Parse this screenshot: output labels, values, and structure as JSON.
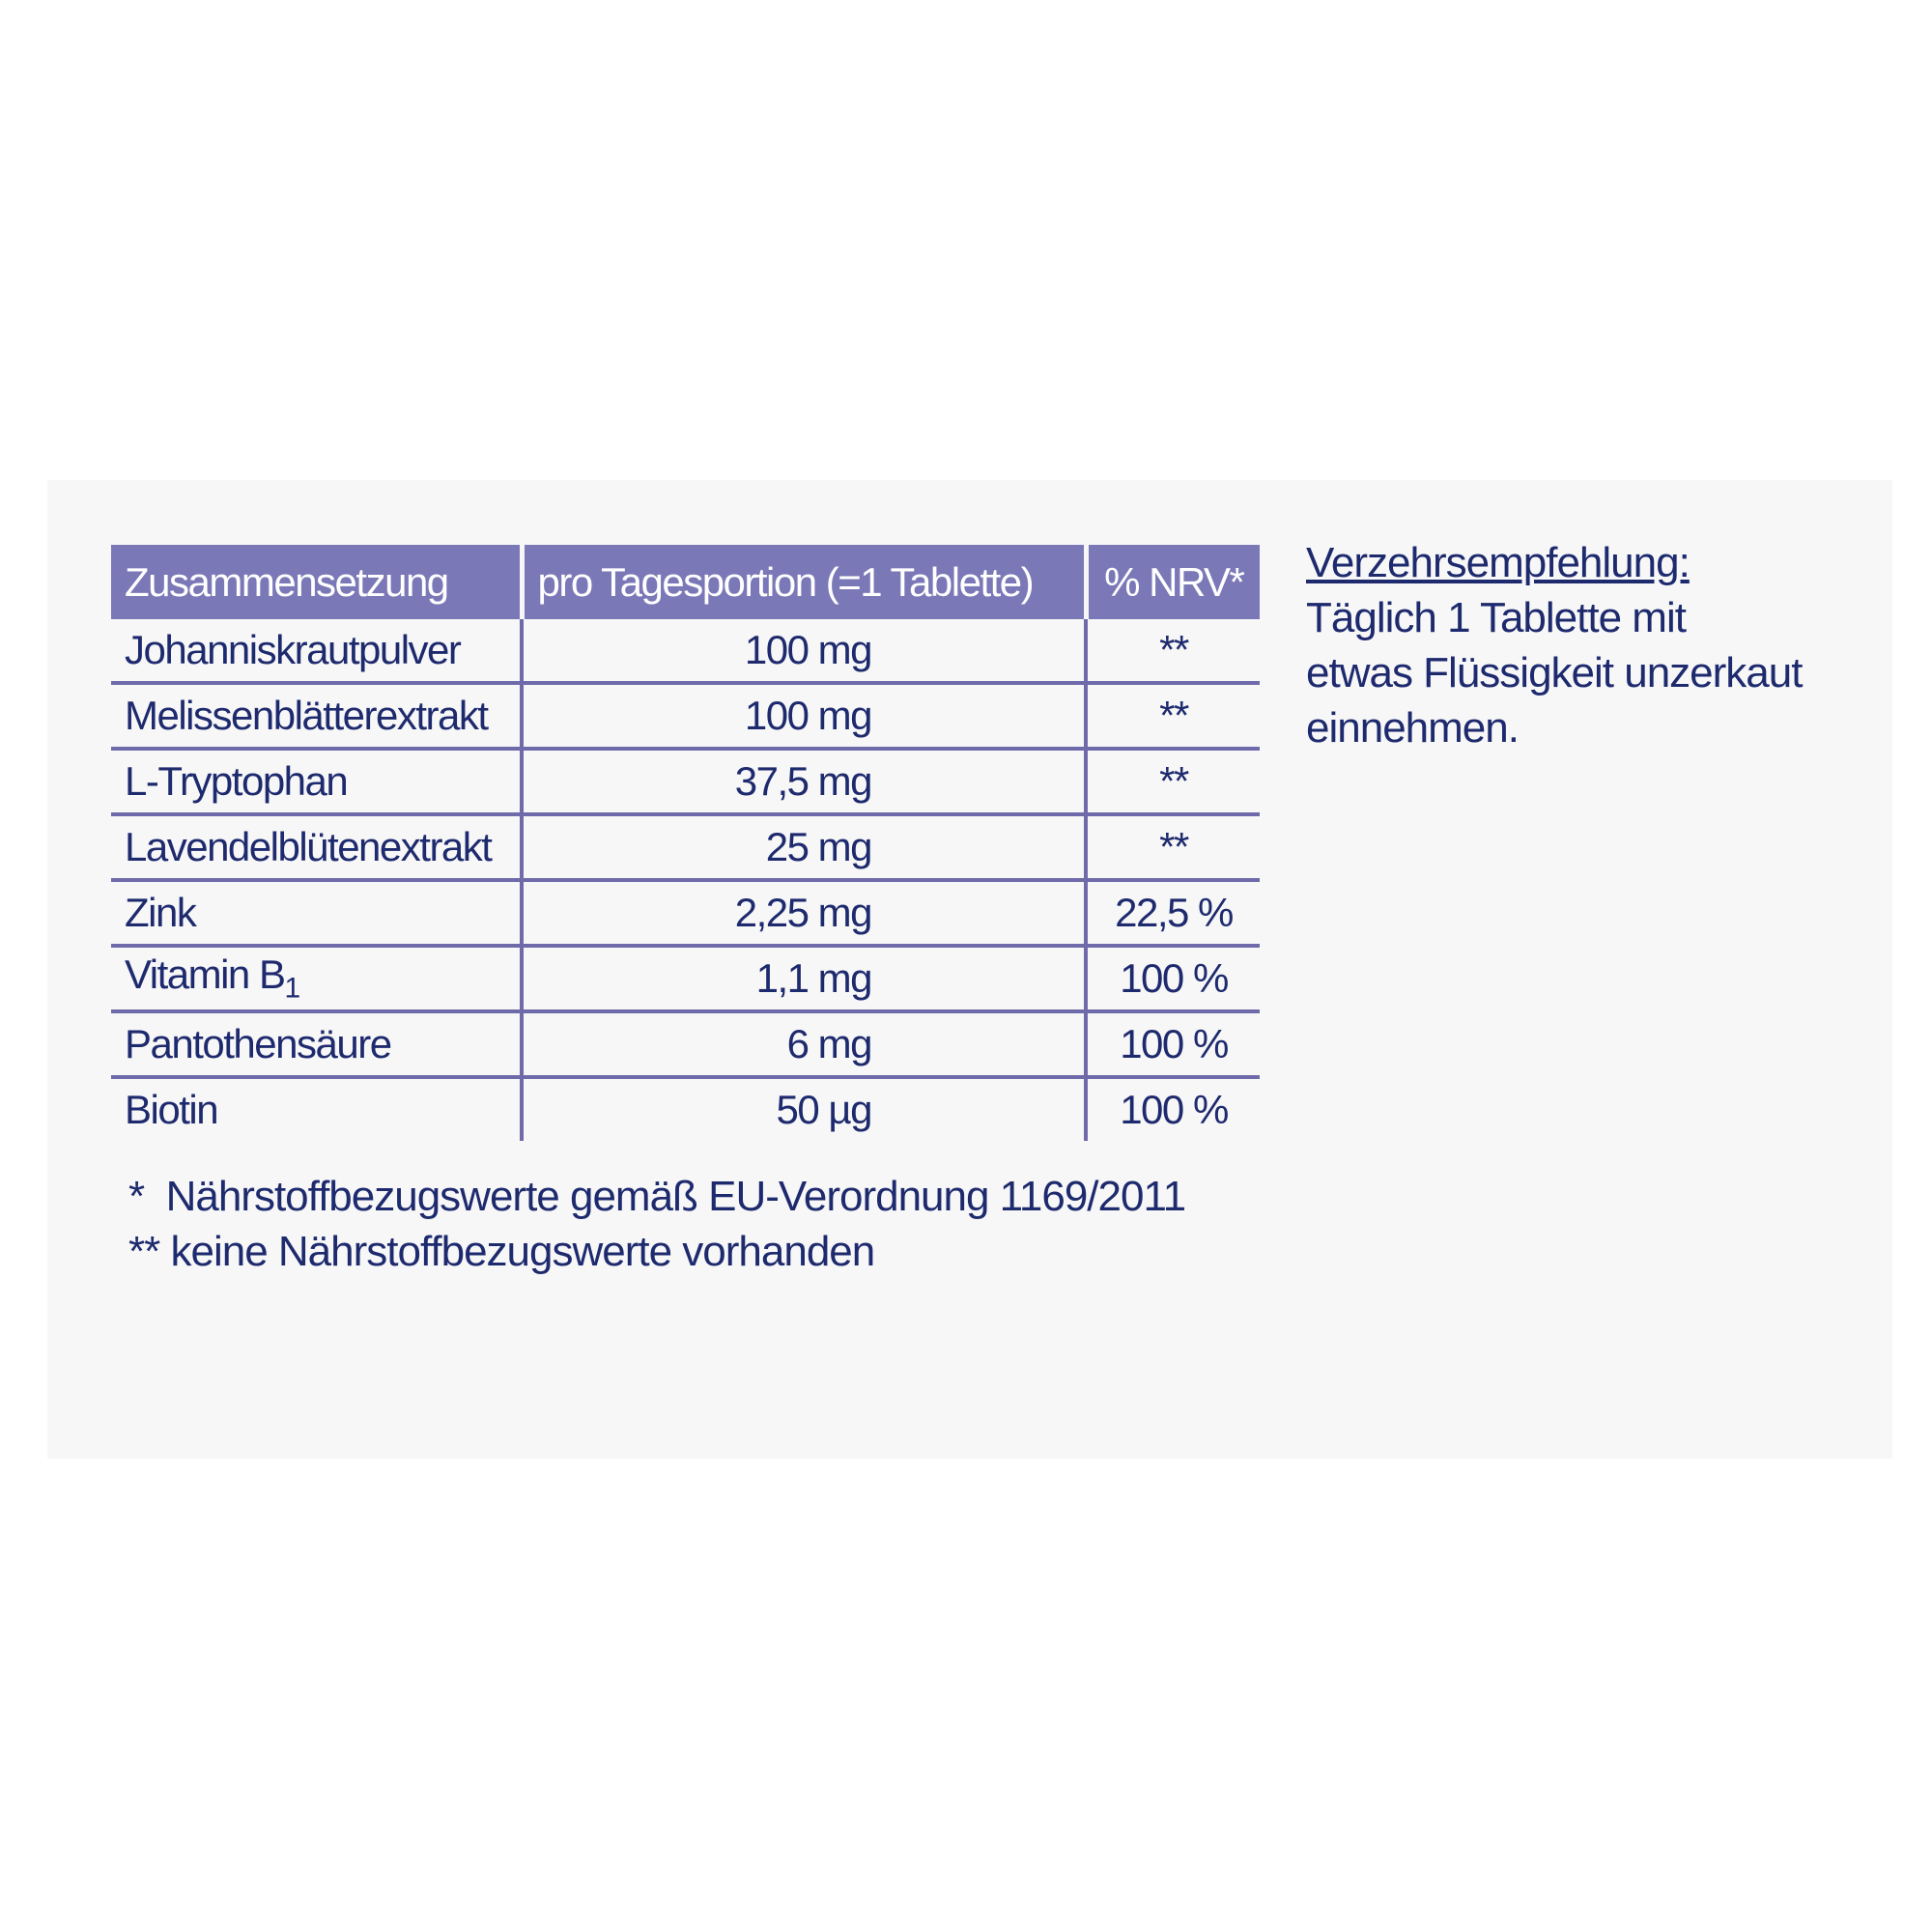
{
  "table": {
    "header": [
      "Zusammensetzung",
      "pro Tagesportion (=1 Tablette)",
      "% NRV*"
    ],
    "rows": [
      [
        "Johanniskrautpulver",
        "100 mg",
        "**"
      ],
      [
        "Melissenblätterextrakt",
        "100 mg",
        "**"
      ],
      [
        "L-Tryptophan",
        "37,5 mg",
        "**"
      ],
      [
        "Lavendelblütenextrakt",
        "25 mg",
        "**"
      ],
      [
        "Zink",
        "2,25 mg",
        "22,5 %"
      ],
      [
        {
          "text": "Vitamin B",
          "sub": "1"
        },
        "1,1 mg",
        "100 %"
      ],
      [
        "Pantothensäure",
        "6 mg",
        "100 %"
      ],
      [
        "Biotin",
        "50 µg",
        "100 %"
      ]
    ]
  },
  "footnotes": [
    "*  Nährstoffbezugswerte gemäß EU-Verordnung 1169/2011",
    "** keine Nährstoffbezugswerte vorhanden"
  ],
  "recommendation": {
    "title": "Verzehrsempfehlung:",
    "lines": [
      "Täglich 1 Tablette mit",
      "etwas Flüssigkeit unzerkaut",
      "einnehmen."
    ]
  }
}
